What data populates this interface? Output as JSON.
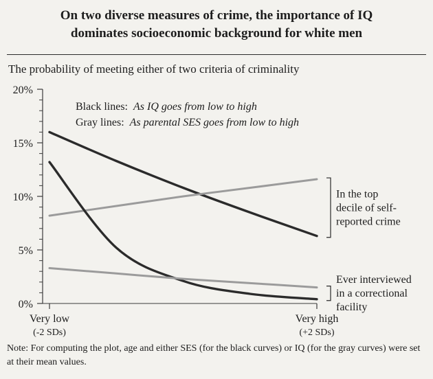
{
  "title_line1": "On two diverse measures of crime, the importance of IQ",
  "title_line2": "dominates socioeconomic background for white men",
  "subtitle": "The probability of meeting either of two criteria of criminality",
  "note": "Note: For computing the plot, age and either SES (for the black curves) or IQ (for the gray curves) were set at their mean values.",
  "colors": {
    "black_line": "#2b2b2b",
    "gray_line": "#9b9b9b",
    "background": "#f3f2ee"
  },
  "chart_data": {
    "type": "line",
    "title": "The probability of meeting either of two criteria of criminality",
    "yticks": [
      "0%",
      "5%",
      "10%",
      "15%",
      "20%"
    ],
    "ylim": [
      0,
      20
    ],
    "y_unit": "%",
    "xlabel_left": "Very low",
    "xlabel_left_sub": "(-2 SDs)",
    "xlabel_right": "Very high",
    "xlabel_right_sub": "(+2 SDs)",
    "xlim": [
      -2,
      2
    ],
    "legend": {
      "black_prefix": "Black lines:",
      "black_text": "As IQ goes from low to high",
      "gray_prefix": "Gray lines:",
      "gray_text": "As parental SES goes from low to high"
    },
    "series": [
      {
        "color": "#2b2b2b",
        "group": "top-decile",
        "x": [
          -2,
          -1,
          0,
          1,
          2
        ],
        "y": [
          16.0,
          13.3,
          10.8,
          8.5,
          6.3
        ]
      },
      {
        "color": "#9b9b9b",
        "group": "top-decile",
        "x": [
          -2,
          -1,
          0,
          1,
          2
        ],
        "y": [
          8.2,
          9.1,
          10.0,
          10.8,
          11.6
        ]
      },
      {
        "color": "#2b2b2b",
        "group": "interviewed",
        "x": [
          -2,
          -1,
          0,
          1,
          2
        ],
        "y": [
          13.2,
          5.2,
          2.1,
          0.9,
          0.4
        ]
      },
      {
        "color": "#9b9b9b",
        "group": "interviewed",
        "x": [
          -2,
          -1,
          0,
          1,
          2
        ],
        "y": [
          3.3,
          2.8,
          2.3,
          1.9,
          1.5
        ]
      }
    ],
    "annotations": [
      {
        "group": "top-decile",
        "lines": [
          "In the top",
          "decile of self-",
          "reported crime"
        ]
      },
      {
        "group": "interviewed",
        "lines": [
          "Ever interviewed",
          "in a correctional",
          "facility"
        ]
      }
    ]
  }
}
